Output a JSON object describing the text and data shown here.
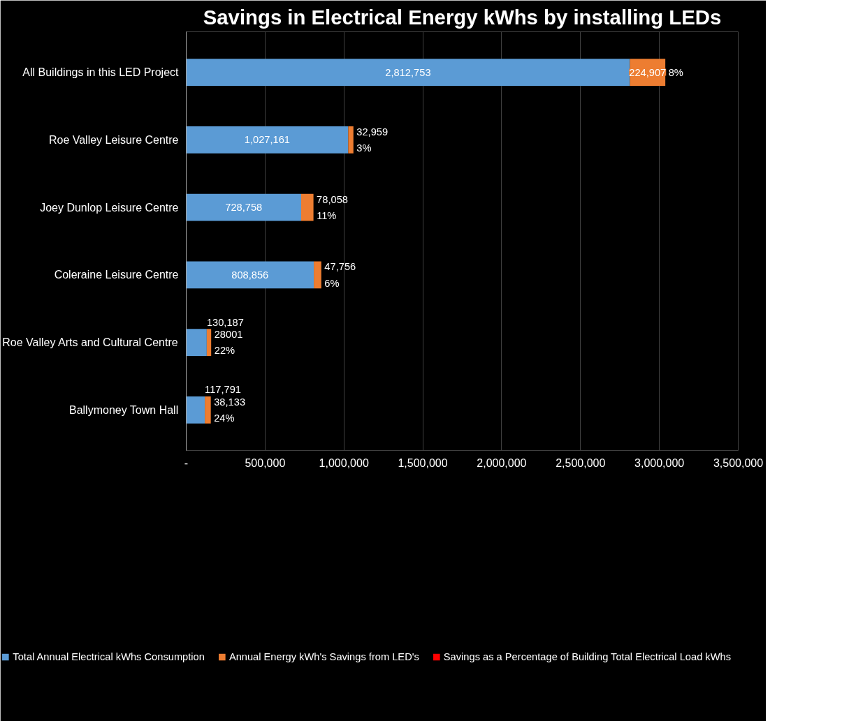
{
  "chart_data": {
    "type": "bar",
    "orientation": "horizontal",
    "stacked": true,
    "title": "Savings in Electrical Energy kWhs by installing LEDs",
    "categories": [
      "All Buildings in this LED Project",
      "Roe Valley Leisure Centre",
      "Joey Dunlop Leisure Centre",
      "Coleraine Leisure Centre",
      "Roe Valley Arts and Cultural Centre",
      "Ballymoney Town Hall"
    ],
    "series": [
      {
        "name": "Total Annual Electrical kWhs Consumption",
        "color": "#5b9bd5",
        "values": [
          2812753,
          1027161,
          728758,
          808856,
          130187,
          117791
        ],
        "value_labels": [
          "2,812,753",
          "1,027,161",
          "728,758",
          "808,856",
          "130,187",
          "117,791"
        ]
      },
      {
        "name": "Annual Energy kWh's Savings from LED's",
        "color": "#ed7d31",
        "values": [
          224907,
          32959,
          78058,
          47756,
          28001,
          38133
        ],
        "value_labels": [
          "224,907",
          "32,959",
          "78,058",
          "47,756",
          "28001",
          "38,133"
        ]
      },
      {
        "name": "Savings as a Percentage of Building Total Electrical Load kWhs",
        "color": "#ff0000",
        "values": [
          8,
          3,
          11,
          6,
          22,
          24
        ],
        "value_labels": [
          "8%",
          "3%",
          "11%",
          "6%",
          "22%",
          "24%"
        ]
      }
    ],
    "xlim": [
      0,
      3500000
    ],
    "xticks": [
      {
        "value": 0,
        "label": "-"
      },
      {
        "value": 500000,
        "label": "500,000"
      },
      {
        "value": 1000000,
        "label": "1,000,000"
      },
      {
        "value": 1500000,
        "label": "1,500,000"
      },
      {
        "value": 2000000,
        "label": "2,000,000"
      },
      {
        "value": 2500000,
        "label": "2,500,000"
      },
      {
        "value": 3000000,
        "label": "3,000,000"
      },
      {
        "value": 3500000,
        "label": "3,500,000"
      }
    ],
    "grid": "x",
    "legend": "bottom"
  }
}
